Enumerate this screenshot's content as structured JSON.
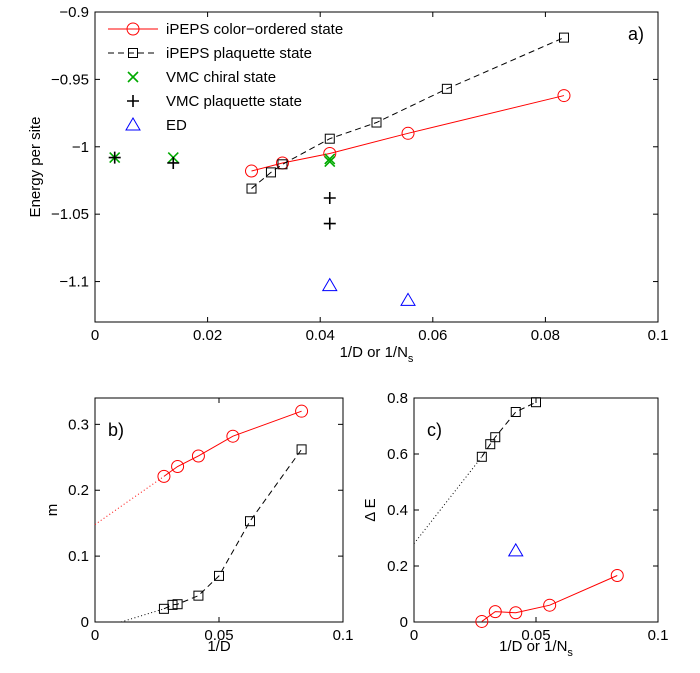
{
  "chart_data": [
    {
      "panel": "a)",
      "type": "line",
      "xlabel": "1/D or 1/N",
      "xlabel_sub": "s",
      "ylabel": "Energy per site",
      "xlim": [
        0,
        0.1
      ],
      "ylim": [
        -1.13,
        -0.9
      ],
      "xticks": [
        0,
        0.02,
        0.04,
        0.06,
        0.08,
        0.1
      ],
      "xtick_labels": [
        "0",
        "0.02",
        "0.04",
        "0.06",
        "0.08",
        "0.1"
      ],
      "yticks": [
        -0.9,
        -0.95,
        -1,
        -1.05,
        -1.1
      ],
      "ytick_labels": [
        "−0.9",
        "−0.95",
        "−1",
        "−1.05",
        "−1.1"
      ],
      "legend_position": "top-left",
      "series": [
        {
          "name": "iPEPS color−ordered state",
          "color": "#ff0000",
          "marker": "circle",
          "line": "solid",
          "points": [
            [
              0.0278,
              -1.018
            ],
            [
              0.0333,
              -1.012
            ],
            [
              0.0417,
              -1.005
            ],
            [
              0.0556,
              -0.99
            ],
            [
              0.0833,
              -0.962
            ]
          ]
        },
        {
          "name": "iPEPS plaquette state",
          "color": "#000000",
          "marker": "square",
          "line": "dashed",
          "points": [
            [
              0.0278,
              -1.031
            ],
            [
              0.03125,
              -1.019
            ],
            [
              0.0333,
              -1.013
            ],
            [
              0.0417,
              -0.994
            ],
            [
              0.05,
              -0.982
            ],
            [
              0.0625,
              -0.957
            ],
            [
              0.0833,
              -0.919
            ]
          ]
        },
        {
          "name": "VMC chiral state",
          "color": "#00aa00",
          "marker": "x",
          "line": "none",
          "points": [
            [
              0.0035,
              -1.008
            ],
            [
              0.0139,
              -1.008
            ],
            [
              0.0417,
              -1.009
            ],
            [
              0.0417,
              -1.011
            ]
          ]
        },
        {
          "name": "VMC plaquette state",
          "color": "#000000",
          "marker": "plus",
          "line": "none",
          "points": [
            [
              0.0035,
              -1.008
            ],
            [
              0.0139,
              -1.012
            ],
            [
              0.0417,
              -1.038
            ],
            [
              0.0417,
              -1.057
            ]
          ]
        },
        {
          "name": "ED",
          "color": "#0000ff",
          "marker": "triangle",
          "line": "none",
          "points": [
            [
              0.0417,
              -1.103
            ],
            [
              0.0556,
              -1.114
            ]
          ]
        }
      ]
    },
    {
      "panel": "b)",
      "type": "line",
      "xlabel": "1/D",
      "ylabel": "m",
      "xlim": [
        0,
        0.1
      ],
      "ylim": [
        0,
        0.34
      ],
      "xticks": [
        0,
        0.05,
        0.1
      ],
      "xtick_labels": [
        "0",
        "0.05",
        "0.1"
      ],
      "yticks": [
        0,
        0.1,
        0.2,
        0.3
      ],
      "ytick_labels": [
        "0",
        "0.1",
        "0.2",
        "0.3"
      ],
      "series": [
        {
          "color": "#ff0000",
          "marker": "circle",
          "line": "solid",
          "points": [
            [
              0.0278,
              0.221
            ],
            [
              0.0333,
              0.236
            ],
            [
              0.0417,
              0.252
            ],
            [
              0.0556,
              0.282
            ],
            [
              0.0833,
              0.32
            ]
          ]
        },
        {
          "color": "#000000",
          "marker": "square",
          "line": "dashed",
          "points": [
            [
              0.0278,
              0.02
            ],
            [
              0.03125,
              0.026
            ],
            [
              0.0333,
              0.027
            ],
            [
              0.0417,
              0.04
            ],
            [
              0.05,
              0.07
            ],
            [
              0.0625,
              0.153
            ],
            [
              0.0833,
              0.262
            ]
          ]
        }
      ],
      "extrapolations": [
        {
          "color": "#ff0000",
          "points": [
            [
              0,
              0.148
            ],
            [
              0.0278,
              0.221
            ]
          ]
        },
        {
          "color": "#000000",
          "points": [
            [
              0.0105,
              0
            ],
            [
              0.0278,
              0.02
            ]
          ]
        }
      ]
    },
    {
      "panel": "c)",
      "type": "line",
      "xlabel": "1/D or 1/N",
      "xlabel_sub": "s",
      "ylabel": "Δ E",
      "xlim": [
        0,
        0.1
      ],
      "ylim": [
        0,
        0.8
      ],
      "xticks": [
        0,
        0.05,
        0.1
      ],
      "xtick_labels": [
        "0",
        "0.05",
        "0.1"
      ],
      "yticks": [
        0,
        0.2,
        0.4,
        0.6,
        0.8
      ],
      "ytick_labels": [
        "0",
        "0.2",
        "0.4",
        "0.6",
        "0.8"
      ],
      "series": [
        {
          "color": "#ff0000",
          "marker": "circle",
          "line": "solid",
          "points": [
            [
              0.0278,
              0.002
            ],
            [
              0.0333,
              0.037
            ],
            [
              0.0417,
              0.033
            ],
            [
              0.0556,
              0.06
            ],
            [
              0.0833,
              0.166
            ]
          ]
        },
        {
          "color": "#000000",
          "marker": "square",
          "line": "dashed",
          "points": [
            [
              0.0278,
              0.59
            ],
            [
              0.03125,
              0.635
            ],
            [
              0.0333,
              0.66
            ],
            [
              0.0417,
              0.75
            ],
            [
              0.05,
              0.785
            ]
          ]
        },
        {
          "color": "#0000ff",
          "marker": "triangle",
          "line": "none",
          "points": [
            [
              0.0417,
              0.254
            ]
          ]
        }
      ],
      "extrapolations": [
        {
          "color": "#000000",
          "points": [
            [
              0,
              0.28
            ],
            [
              0.0278,
              0.59
            ]
          ]
        }
      ]
    }
  ]
}
